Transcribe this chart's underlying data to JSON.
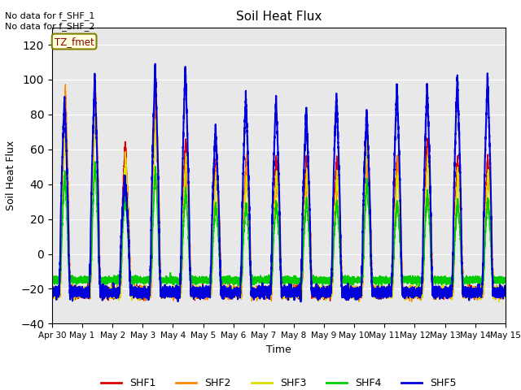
{
  "title": "Soil Heat Flux",
  "xlabel": "Time",
  "ylabel": "Soil Heat Flux",
  "ylim": [
    -40,
    130
  ],
  "yticks": [
    -40,
    -20,
    0,
    20,
    40,
    60,
    80,
    100,
    120
  ],
  "background_color": "#e8e8e8",
  "annotation_text": "No data for f_SHF_1\nNo data for f_SHF_2",
  "box_label": "TZ_fmet",
  "colors": {
    "SHF1": "#dd0000",
    "SHF2": "#ff8800",
    "SHF3": "#dddd00",
    "SHF4": "#00cc00",
    "SHF5": "#0000dd"
  },
  "legend_labels": [
    "SHF1",
    "SHF2",
    "SHF3",
    "SHF4",
    "SHF5"
  ],
  "xticklabels": [
    "Apr 30",
    "May 1",
    "May 2",
    "May 3",
    "May 4",
    "May 5",
    "May 6",
    "May 7",
    "May 8",
    "May 9",
    "May 10",
    "May 11",
    "May 12",
    "May 13",
    "May 14",
    "May 15"
  ],
  "shf1_peaks": [
    85,
    97,
    65,
    90,
    67,
    53,
    52,
    55,
    56,
    55,
    79,
    55,
    65,
    56,
    57
  ],
  "shf2_peaks": [
    97,
    94,
    55,
    93,
    47,
    52,
    55,
    44,
    44,
    40,
    52,
    57,
    60,
    46,
    47
  ],
  "shf5_peaks": [
    90,
    101,
    44,
    108,
    108,
    72,
    91,
    90,
    83,
    93,
    82,
    97,
    97,
    102,
    102
  ],
  "day_trough_shf1": -22,
  "day_trough_shf4_night": -15,
  "day_trough_shf45": -22
}
